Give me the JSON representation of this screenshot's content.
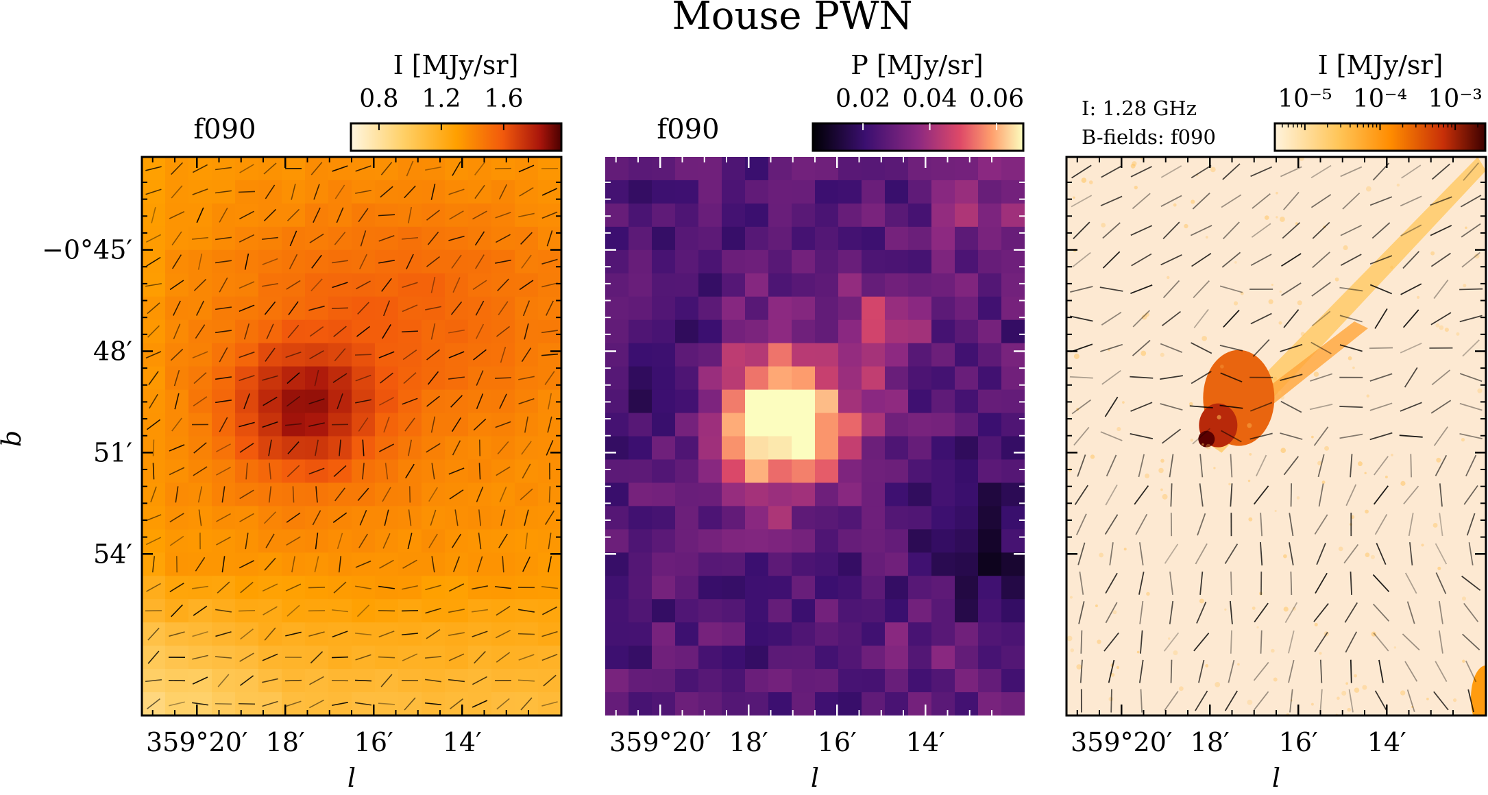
{
  "title": "Mouse PWN",
  "ylabel": "b",
  "y_ticks": [
    "−0°45′",
    "48′",
    "51′",
    "54′"
  ],
  "colors": {
    "heat_low": "#fff6e0",
    "heat_mid": "#ffa000",
    "heat_high": "#4a0000",
    "magma_low": "#000004",
    "magma_mid": "#b5367a",
    "magma_high": "#fcfdbf",
    "vector": "#000000"
  },
  "chart_data": [
    {
      "type": "heatmap",
      "panel_label": "f090",
      "colormap": "afmhot_r",
      "colorbar": {
        "label": "I [MJy/sr]",
        "ticks": [
          0.8,
          1.2,
          1.6
        ],
        "range": [
          0.62,
          1.97
        ],
        "scale": "linear"
      },
      "xlabel": "l",
      "x_ticks": [
        "359°20′",
        "18′",
        "16′",
        "14′"
      ],
      "overlay": "polarization vectors",
      "peak": {
        "l_arcmin": 17.6,
        "b_arcmin": -49.8,
        "value": 1.95
      },
      "grid": "18x24"
    },
    {
      "type": "heatmap",
      "panel_label": "f090",
      "colormap": "magma",
      "colorbar": {
        "label": "P [MJy/sr]",
        "ticks": [
          0.02,
          0.04,
          0.06
        ],
        "range": [
          0.005,
          0.068
        ],
        "scale": "linear"
      },
      "xlabel": "l",
      "x_ticks": [
        "359°20′",
        "18′",
        "16′",
        "14′"
      ],
      "peak": {
        "l_arcmin": 17.8,
        "b_arcmin": -50.0,
        "value": 0.066
      },
      "grid": "18x24"
    },
    {
      "type": "heatmap",
      "annotation_lines": [
        "I:  1.28 GHz",
        "B-fields:  f090"
      ],
      "colormap": "gist_heat_r",
      "colorbar": {
        "label": "I [MJy/sr]",
        "ticks": [
          "10⁻⁵",
          "10⁻⁴",
          "10⁻³"
        ],
        "tick_exponents": [
          -5,
          -4,
          -3
        ],
        "range_exponents": [
          -5.4,
          -2.6
        ],
        "scale": "log"
      },
      "xlabel": "l",
      "x_ticks": [
        "359°20′",
        "18′",
        "16′",
        "14′"
      ],
      "overlay": "B-field vectors",
      "head": {
        "l_arcmin": 18.2,
        "b_arcmin": -50.6
      }
    }
  ]
}
